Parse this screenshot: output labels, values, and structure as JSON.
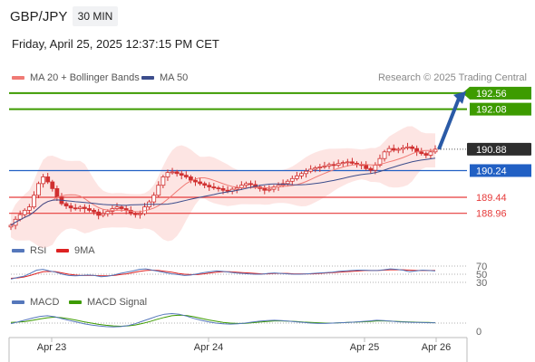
{
  "header": {
    "symbol": "GBP/JPY",
    "timeframe": "30 MIN",
    "datetime": "Friday, April 25, 2025 12:37:15 PM CET"
  },
  "credit": "Research © 2025 Trading Central",
  "colors": {
    "resistance": "#3d9b00",
    "pivot": "#2160c4",
    "support": "#e63a3a",
    "arrow": "#2a5aa6",
    "bollinger_fill": "#fbd0cc",
    "ma20": "#f07a75",
    "ma50": "#3c4d8c",
    "candle": "#d03030",
    "rsi": "#5577bb",
    "rsi_ma": "#dd2222",
    "macd": "#5577bb",
    "macd_signal": "#3d9b00"
  },
  "chart_data": [
    {
      "type": "candlestick",
      "legend": [
        {
          "name": "MA 20 + Bollinger Bands",
          "color": "#f07a75"
        },
        {
          "name": "MA 50",
          "color": "#3c4d8c"
        }
      ],
      "x_ticks": [
        "Apr 23",
        "Apr 24",
        "Apr 25",
        "Apr 26"
      ],
      "levels": [
        {
          "label": "192.56",
          "value": 192.56,
          "kind": "resistance"
        },
        {
          "label": "192.08",
          "value": 192.08,
          "kind": "resistance"
        },
        {
          "label": "190.88",
          "value": 190.88,
          "kind": "last"
        },
        {
          "label": "190.24",
          "value": 190.24,
          "kind": "pivot"
        },
        {
          "label": "189.44",
          "value": 189.44,
          "kind": "support"
        },
        {
          "label": "188.96",
          "value": 188.96,
          "kind": "support"
        }
      ],
      "y_range": [
        188.3,
        193.1
      ],
      "close": [
        188.6,
        188.78,
        188.92,
        189.05,
        189.15,
        189.5,
        189.85,
        190.05,
        189.9,
        189.7,
        189.45,
        189.25,
        189.18,
        189.12,
        189.1,
        189.14,
        189.1,
        189.05,
        189.0,
        188.9,
        188.95,
        189.02,
        189.1,
        189.15,
        189.1,
        189.05,
        188.95,
        188.92,
        188.95,
        189.15,
        189.3,
        189.5,
        189.8,
        190.05,
        190.18,
        190.2,
        190.15,
        190.1,
        190.05,
        189.95,
        189.9,
        189.85,
        189.8,
        189.75,
        189.72,
        189.7,
        189.65,
        189.62,
        189.68,
        189.72,
        189.8,
        189.85,
        189.82,
        189.75,
        189.7,
        189.65,
        189.68,
        189.75,
        189.8,
        189.85,
        189.92,
        190.0,
        190.08,
        190.15,
        190.22,
        190.28,
        190.32,
        190.35,
        190.38,
        190.42,
        190.4,
        190.45,
        190.48,
        190.5,
        190.46,
        190.42,
        190.4,
        190.3,
        190.25,
        190.4,
        190.6,
        190.8,
        190.9,
        190.85,
        190.88,
        190.92,
        190.95,
        190.9,
        190.8,
        190.75,
        190.7,
        190.8,
        190.88
      ],
      "arrow_target": 192.56
    },
    {
      "type": "line",
      "legend": [
        {
          "name": "RSI",
          "color": "#5577bb"
        },
        {
          "name": "9MA",
          "color": "#dd2222"
        }
      ],
      "y_ticks": [
        "70",
        "50",
        "30"
      ],
      "rsi_values": [
        38,
        42,
        45,
        52,
        60,
        62,
        58,
        55,
        50,
        47,
        46,
        47,
        48,
        47,
        44,
        45,
        48,
        52,
        55,
        58,
        62,
        63,
        60,
        57,
        54,
        51,
        49,
        47,
        48,
        51,
        54,
        56,
        58,
        57,
        55,
        53,
        52,
        51,
        50,
        50,
        52,
        53,
        52,
        51,
        50,
        50,
        51,
        52,
        53,
        54,
        55,
        57,
        58,
        59,
        60,
        60,
        59,
        59,
        61,
        63,
        62,
        60,
        56,
        58,
        60,
        59,
        58
      ],
      "rsi_ma_values": [
        40,
        41,
        43,
        47,
        52,
        56,
        57,
        56,
        53,
        50,
        48,
        47,
        47,
        47,
        46,
        46,
        47,
        49,
        51,
        54,
        57,
        59,
        60,
        59,
        57,
        55,
        52,
        50,
        49,
        49,
        51,
        53,
        55,
        56,
        56,
        55,
        54,
        53,
        52,
        51,
        51,
        52,
        52,
        52,
        51,
        51,
        51,
        51,
        52,
        53,
        54,
        55,
        56,
        57,
        58,
        59,
        59,
        59,
        60,
        61,
        61,
        61,
        60,
        59,
        59,
        59,
        59
      ]
    },
    {
      "type": "line",
      "legend": [
        {
          "name": "MACD",
          "color": "#5577bb"
        },
        {
          "name": "MACD Signal",
          "color": "#3d9b00"
        }
      ],
      "y_ticks": [
        "0"
      ],
      "macd_values": [
        -0.02,
        0.04,
        0.1,
        0.16,
        0.21,
        0.23,
        0.2,
        0.14,
        0.08,
        0.03,
        -0.02,
        -0.06,
        -0.09,
        -0.11,
        -0.12,
        -0.11,
        -0.08,
        -0.02,
        0.06,
        0.14,
        0.22,
        0.28,
        0.3,
        0.28,
        0.22,
        0.15,
        0.09,
        0.04,
        0.0,
        -0.02,
        -0.03,
        -0.02,
        0.0,
        0.03,
        0.06,
        0.08,
        0.09,
        0.08,
        0.06,
        0.04,
        0.02,
        0.0,
        -0.01,
        -0.01,
        0.0,
        0.01,
        0.02,
        0.03,
        0.05,
        0.07,
        0.09,
        0.08,
        0.06,
        0.04,
        0.03,
        0.02,
        0.02,
        0.01,
        0.01
      ],
      "signal_values": [
        0.02,
        0.03,
        0.05,
        0.09,
        0.13,
        0.17,
        0.19,
        0.17,
        0.13,
        0.09,
        0.04,
        0.0,
        -0.04,
        -0.07,
        -0.09,
        -0.1,
        -0.09,
        -0.06,
        -0.01,
        0.05,
        0.12,
        0.18,
        0.23,
        0.25,
        0.24,
        0.2,
        0.15,
        0.1,
        0.06,
        0.02,
        0.0,
        -0.01,
        -0.01,
        0.01,
        0.03,
        0.05,
        0.07,
        0.07,
        0.06,
        0.05,
        0.03,
        0.02,
        0.01,
        0.0,
        0.0,
        0.01,
        0.02,
        0.03,
        0.04,
        0.05,
        0.07,
        0.07,
        0.06,
        0.05,
        0.04,
        0.03,
        0.02,
        0.02,
        0.01
      ]
    }
  ]
}
